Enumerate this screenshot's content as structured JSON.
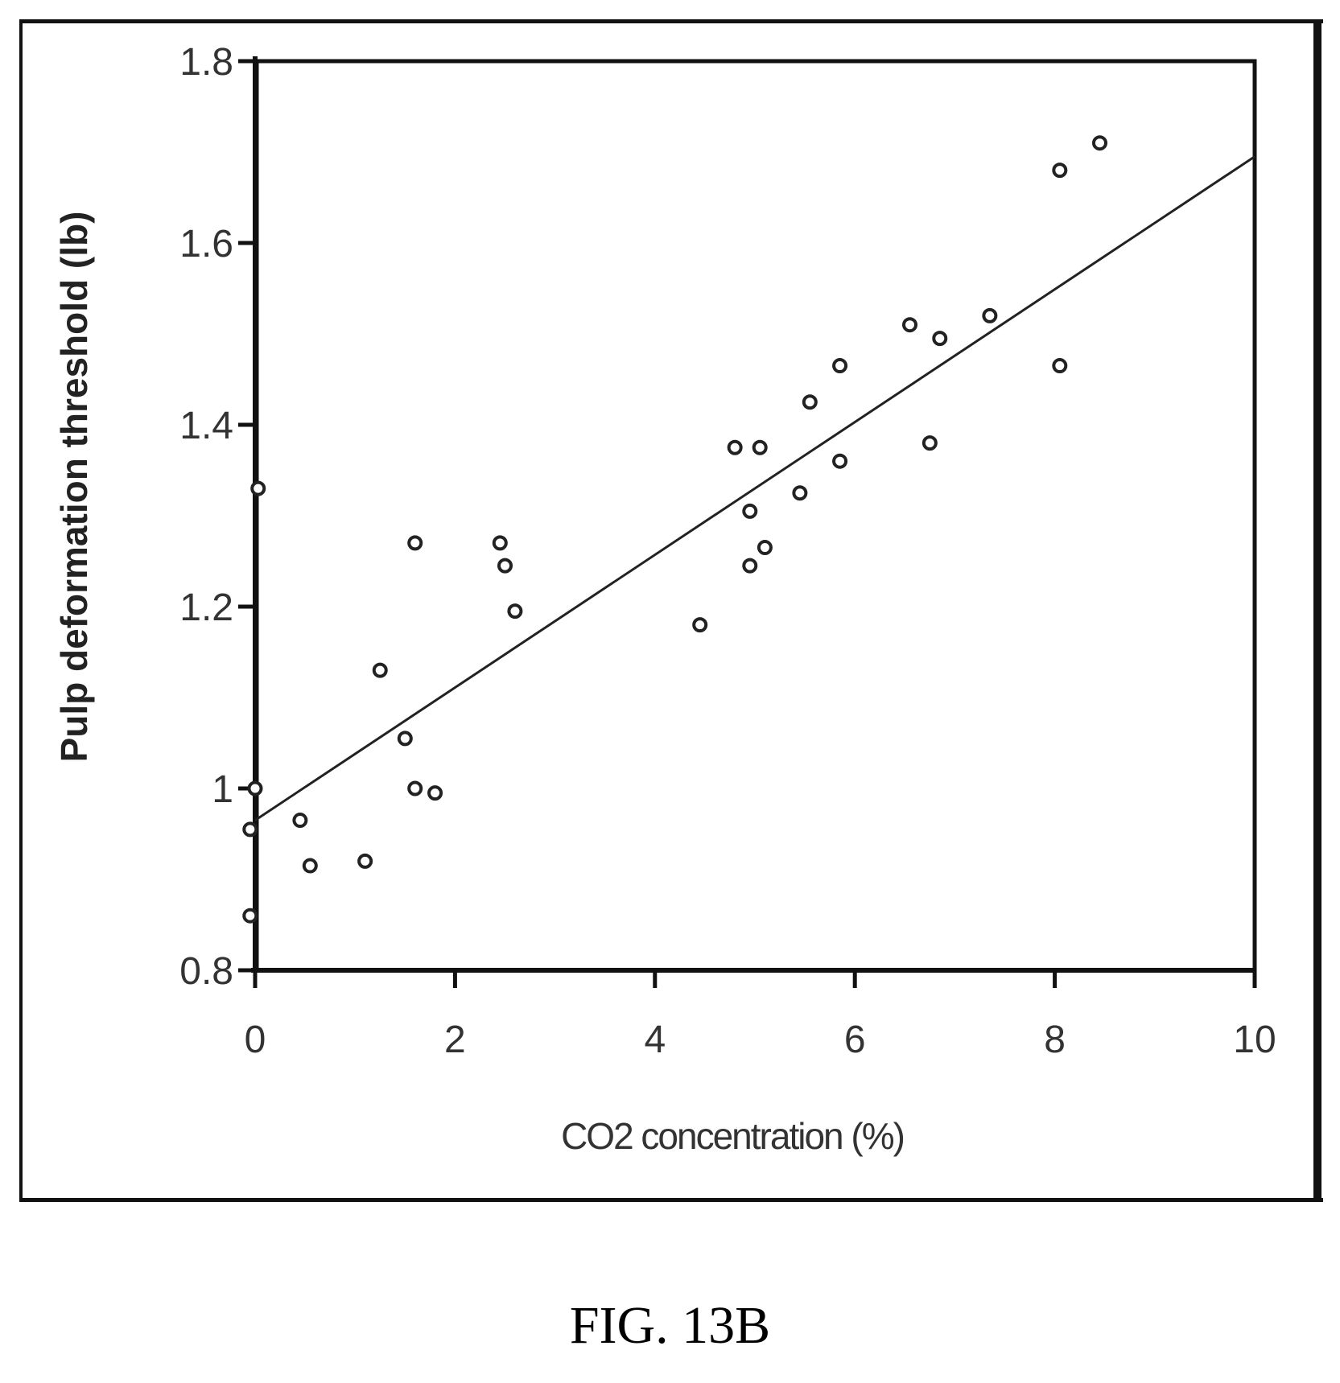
{
  "figure": {
    "caption": "FIG. 13B"
  },
  "chart_data": {
    "type": "scatter",
    "title": "",
    "xlabel": "CO2 concentration (%)",
    "ylabel": "Pulp deformation threshold (lb)",
    "xlim": [
      0,
      10
    ],
    "ylim": [
      0.8,
      1.8
    ],
    "x_ticks": [
      "0",
      "2",
      "4",
      "6",
      "8",
      "10"
    ],
    "y_ticks": [
      "0.8",
      "1",
      "1.2",
      "1.4",
      "1.6",
      "1.8"
    ],
    "x_tick_values": [
      0,
      2,
      4,
      6,
      8,
      10
    ],
    "y_tick_values": [
      0.8,
      1.0,
      1.2,
      1.4,
      1.6,
      1.8
    ],
    "grid": false,
    "marker": "open-circle",
    "series": [
      {
        "points": [
          [
            0.03,
            1.33
          ],
          [
            0.0,
            1.0
          ],
          [
            -0.05,
            0.955
          ],
          [
            -0.05,
            0.86
          ],
          [
            0.45,
            0.965
          ],
          [
            0.55,
            0.915
          ],
          [
            1.1,
            0.92
          ],
          [
            1.25,
            1.13
          ],
          [
            1.5,
            1.055
          ],
          [
            1.6,
            1.27
          ],
          [
            1.6,
            1.0
          ],
          [
            1.8,
            0.995
          ],
          [
            2.45,
            1.27
          ],
          [
            2.5,
            1.245
          ],
          [
            2.6,
            1.195
          ],
          [
            4.45,
            1.18
          ],
          [
            4.8,
            1.375
          ],
          [
            4.95,
            1.305
          ],
          [
            4.95,
            1.245
          ],
          [
            5.05,
            1.375
          ],
          [
            5.1,
            1.265
          ],
          [
            5.45,
            1.325
          ],
          [
            5.55,
            1.425
          ],
          [
            5.85,
            1.465
          ],
          [
            5.85,
            1.36
          ],
          [
            6.55,
            1.51
          ],
          [
            6.75,
            1.38
          ],
          [
            6.85,
            1.495
          ],
          [
            7.35,
            1.52
          ],
          [
            8.05,
            1.68
          ],
          [
            8.05,
            1.465
          ],
          [
            8.45,
            1.71
          ]
        ]
      }
    ],
    "trendline": {
      "x": [
        0,
        10
      ],
      "y": [
        0.965,
        1.695
      ]
    }
  }
}
